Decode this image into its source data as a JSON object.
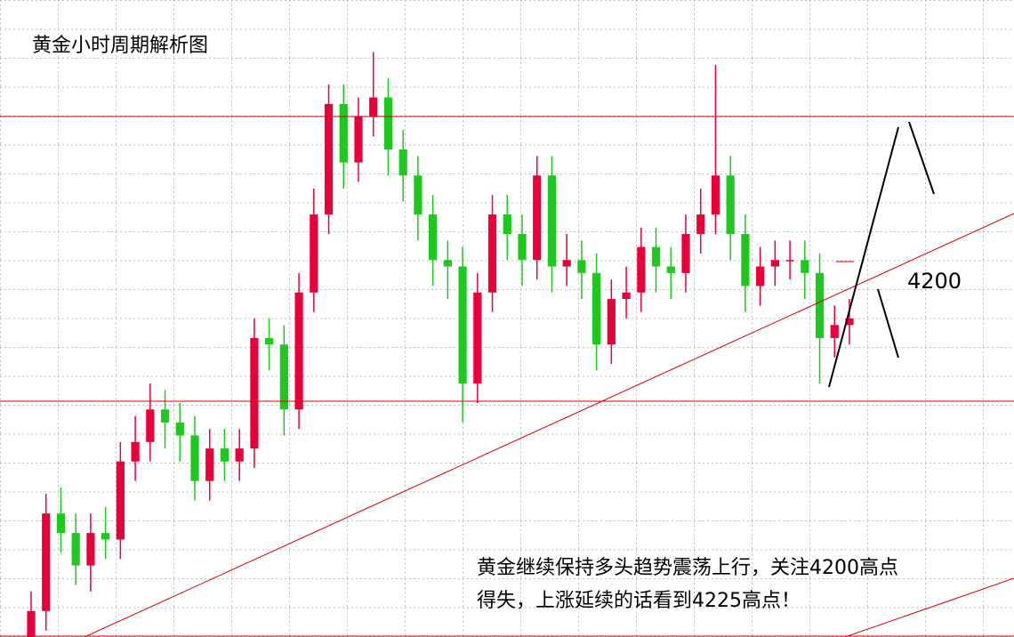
{
  "chart_data": {
    "type": "candlestick",
    "title": "黄金小时周期解析图",
    "level_label": "4200",
    "annotation": [
      "黄金继续保持多头趋势震荡上行，关注4200高点",
      "得失，上涨延续的话看到4225高点！"
    ],
    "up_color": "#e8003a",
    "down_color": "#1ec81e",
    "ylim": [
      4145,
      4243
    ],
    "open": [
      4145,
      4149,
      4164,
      4161,
      4156,
      4161,
      4160,
      4172,
      4175,
      4180,
      4178,
      4176,
      4169,
      4174,
      4172,
      4174,
      4191,
      4190,
      4180,
      4198,
      4210,
      4227,
      4218,
      4225,
      4228,
      4220,
      4216,
      4210,
      4203,
      4202,
      4184,
      4198,
      4210,
      4207,
      4203,
      4216,
      4202,
      4203,
      4201,
      4190,
      4197,
      4198,
      4205,
      4202,
      4201,
      4207,
      4210,
      4216,
      4207,
      4199,
      4202,
      4203,
      4203,
      4201,
      4191,
      4193
    ],
    "high": [
      4152,
      4167,
      4168,
      4164,
      4164,
      4165,
      4175,
      4179,
      4184,
      4183,
      4181,
      4179,
      4177,
      4177,
      4177,
      4194,
      4194,
      4193,
      4201,
      4214,
      4230,
      4230,
      4228,
      4235,
      4231,
      4223,
      4219,
      4213,
      4206,
      4205,
      4201,
      4213,
      4213,
      4210,
      4219,
      4219,
      4207,
      4206,
      4204,
      4200,
      4202,
      4208,
      4208,
      4205,
      4210,
      4214,
      4233,
      4219,
      4210,
      4205,
      4206,
      4206,
      4206,
      4204,
      4196,
      4197
    ],
    "low": [
      4142,
      4146,
      4158,
      4153,
      4152,
      4157,
      4157,
      4169,
      4172,
      4174,
      4172,
      4166,
      4166,
      4169,
      4169,
      4171,
      4186,
      4176,
      4177,
      4195,
      4207,
      4214,
      4215,
      4222,
      4216,
      4212,
      4206,
      4199,
      4197,
      4178,
      4181,
      4195,
      4203,
      4199,
      4200,
      4198,
      4199,
      4197,
      4186,
      4187,
      4194,
      4195,
      4198,
      4197,
      4198,
      4204,
      4207,
      4203,
      4195,
      4196,
      4199,
      4200,
      4197,
      4184,
      4188,
      4190
    ],
    "close": [
      4149,
      4164,
      4161,
      4156,
      4161,
      4160,
      4172,
      4175,
      4180,
      4178,
      4176,
      4169,
      4174,
      4172,
      4174,
      4191,
      4190,
      4180,
      4198,
      4210,
      4227,
      4218,
      4225,
      4228,
      4220,
      4216,
      4210,
      4203,
      4202,
      4184,
      4198,
      4210,
      4207,
      4203,
      4216,
      4202,
      4203,
      4201,
      4190,
      4197,
      4198,
      4205,
      4202,
      4201,
      4207,
      4210,
      4216,
      4207,
      4199,
      4202,
      4203,
      4203,
      4201,
      4191,
      4193,
      4194
    ]
  }
}
